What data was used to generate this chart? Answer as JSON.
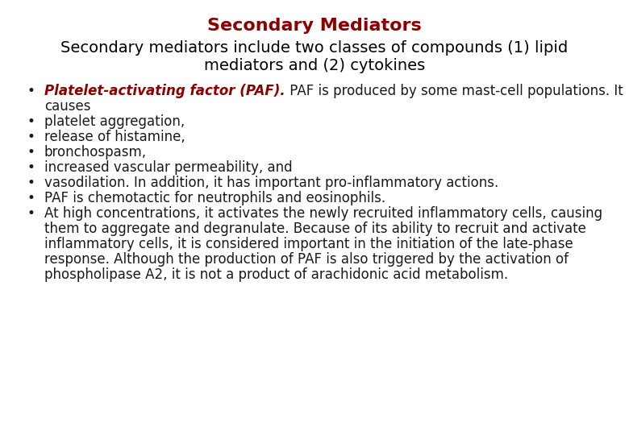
{
  "title": "Secondary Mediators",
  "title_color": "#8B0000",
  "subtitle_line1": "Secondary mediators include two classes of compounds (1) lipid",
  "subtitle_line2": "mediators and (2) cytokines",
  "subtitle_color": "#000000",
  "background_color": "#ffffff",
  "bullet_color": "#1a1a1a",
  "first_bullet_label": "Platelet-activating factor (PAF).",
  "first_bullet_label_color": "#8B0000",
  "first_bullet_rest": " PAF is produced by some mast-cell populations. It",
  "first_bullet_cont": "causes",
  "bullets": [
    "platelet aggregation,",
    "release of histamine,",
    "bronchospasm,",
    "increased vascular permeability, and",
    "vasodilation. In addition, it has important pro-inflammatory actions.",
    "PAF is chemotactic for neutrophils and eosinophils.",
    "At high concentrations, it activates the newly recruited inflammatory cells, causing\nthem to aggregate and degranulate. Because of its ability to recruit and activate\ninflammatory cells, it is considered important in the initiation of the late-phase\nresponse. Although the production of PAF is also triggered by the activation of\nphospholipase A2, it is not a product of arachidonic acid metabolism."
  ],
  "title_fontsize": 16,
  "subtitle_fontsize": 14,
  "bullet_fontsize": 12,
  "figsize": [
    7.8,
    5.4
  ],
  "dpi": 100
}
